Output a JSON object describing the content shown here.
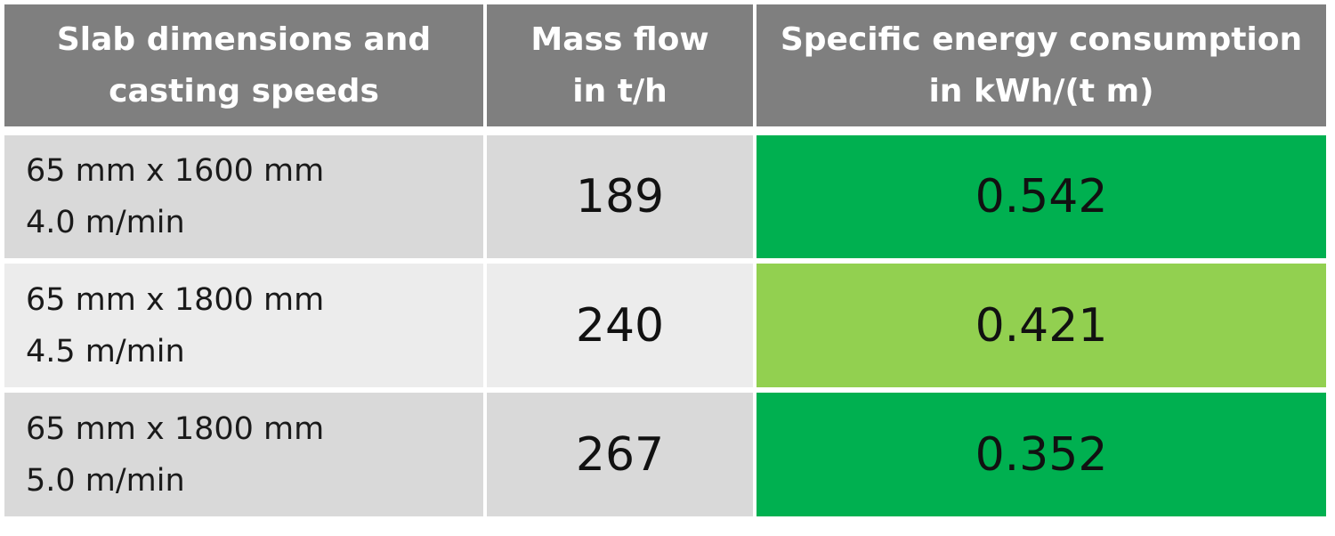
{
  "table": {
    "header": [
      [
        "Slab dimensions  and",
        "casting speeds"
      ],
      [
        "Mass flow",
        "in  t/h"
      ],
      [
        "Specific energy consumption",
        "in kWh/(t m)"
      ]
    ],
    "rows": [
      [
        [
          "65 mm x 1600 mm",
          "4.0 m/min"
        ],
        189,
        0.542
      ],
      [
        [
          "65 mm x 1800 mm",
          "4.5 m/min"
        ],
        240,
        0.421
      ],
      [
        [
          "65 mm x 1800 mm",
          "5.0 m/min"
        ],
        267,
        0.352
      ]
    ]
  }
}
